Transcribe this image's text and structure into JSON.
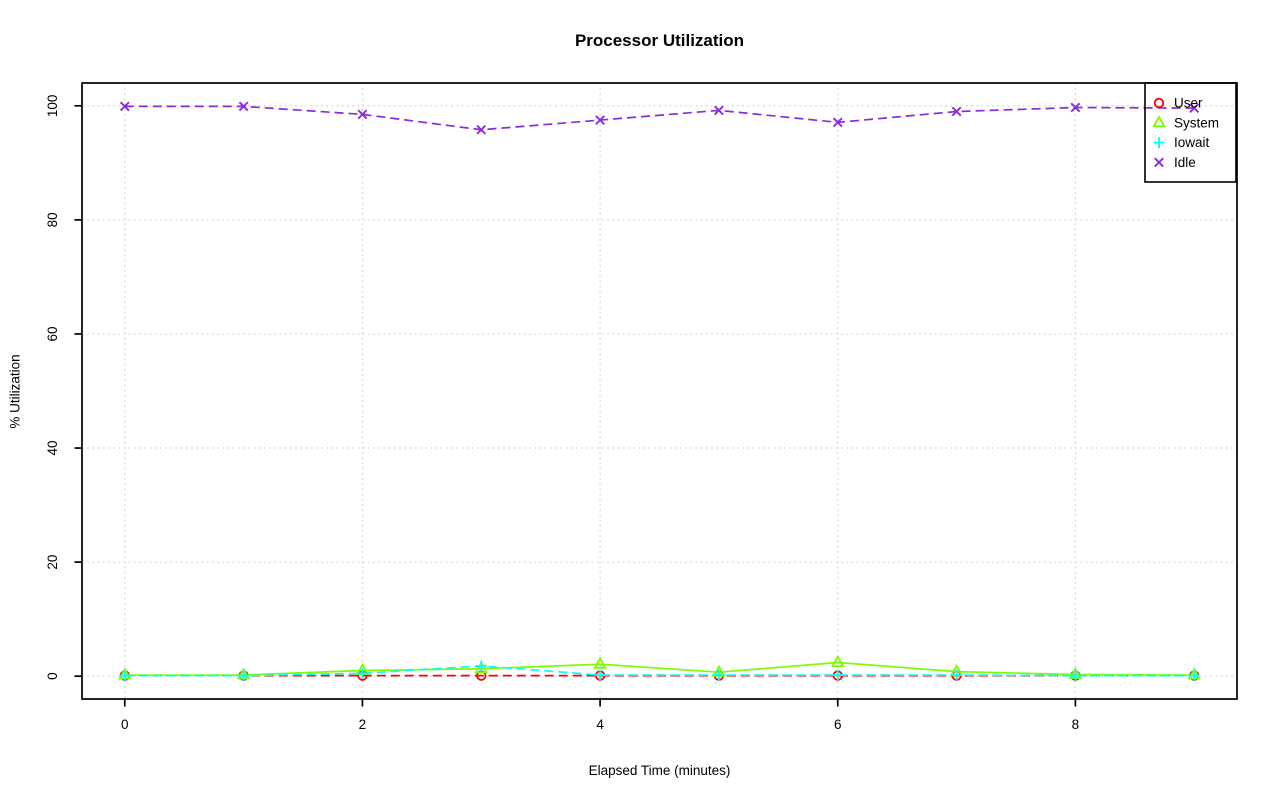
{
  "chart_data": {
    "type": "line",
    "title": "Processor Utilization",
    "xlabel": "Elapsed Time (minutes)",
    "ylabel": "% Utilization",
    "background_color": "#ffffff",
    "grid": true,
    "grid_color": "#d3d3d3",
    "grid_style": "dotted",
    "axis_color": "#000000",
    "legend_position": "topright",
    "x": [
      0,
      1,
      2,
      3,
      4,
      5,
      6,
      7,
      8,
      9
    ],
    "x_ticks": [
      0,
      2,
      4,
      6,
      8
    ],
    "y_ticks": [
      0,
      20,
      40,
      60,
      80,
      100
    ],
    "xlim": [
      -0.36,
      9.36
    ],
    "ylim": [
      -4,
      104
    ],
    "series": [
      {
        "name": "User",
        "color": "#ff0000",
        "marker": "circle",
        "line": "dashed",
        "values": [
          0.1,
          0.1,
          0.1,
          0.1,
          0.1,
          0.1,
          0.1,
          0.1,
          0.1,
          0.1
        ]
      },
      {
        "name": "System",
        "color": "#7cfc00",
        "marker": "triangle",
        "line": "solid",
        "values": [
          0.2,
          0.2,
          1.0,
          1.3,
          2.1,
          0.7,
          2.4,
          0.8,
          0.3,
          0.2
        ]
      },
      {
        "name": "Iowait",
        "color": "#00ffff",
        "marker": "plus",
        "line": "dashed",
        "values": [
          0.1,
          0.1,
          0.5,
          1.8,
          0.2,
          0.2,
          0.2,
          0.2,
          0.1,
          0.1
        ]
      },
      {
        "name": "Idle",
        "color": "#8a2be2",
        "marker": "x",
        "line": "dashed",
        "values": [
          99.9,
          99.9,
          98.5,
          95.8,
          97.5,
          99.2,
          97.1,
          99.0,
          99.7,
          99.6
        ]
      }
    ]
  }
}
